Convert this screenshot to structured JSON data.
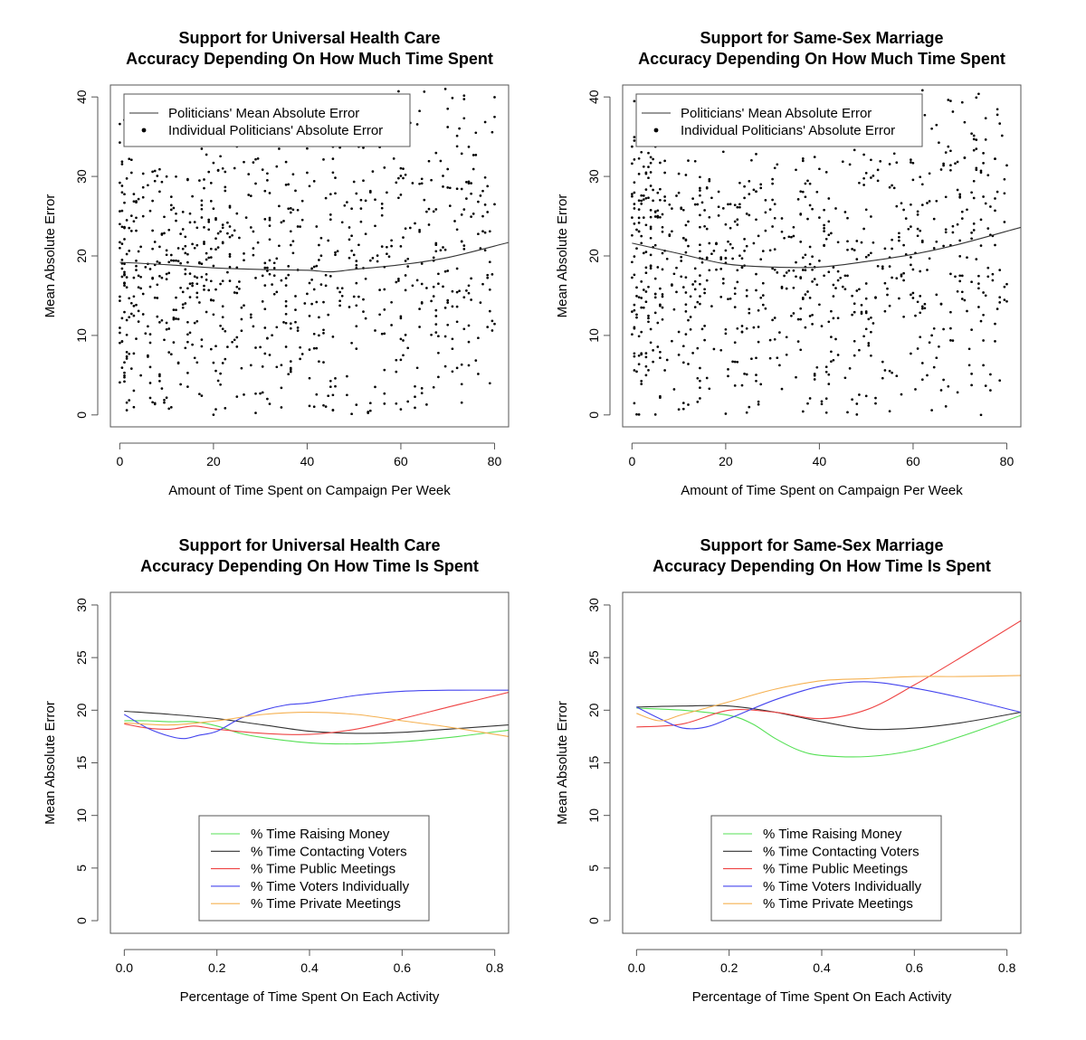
{
  "chart_data": [
    {
      "type": "scatter",
      "title_lines": [
        "Support for Universal Health Care",
        "Accuracy Depending On How Much Time Spent"
      ],
      "xlabel": "Amount of Time Spent on Campaign Per Week",
      "ylabel": "Mean Absolute Error",
      "xlim": [
        -2,
        83
      ],
      "ylim": [
        -1.5,
        41.5
      ],
      "xticks": [
        0,
        20,
        40,
        60,
        80
      ],
      "xtick_labels": [
        "0",
        "20",
        "40",
        "60",
        "80"
      ],
      "yticks": [
        0,
        10,
        20,
        30,
        40
      ],
      "ytick_labels": [
        "0",
        "10",
        "20",
        "30",
        "40"
      ],
      "legend": {
        "placement": "top-left",
        "entries": [
          "Politicians' Mean Absolute Error",
          "Individual Politicians' Absolute Error"
        ]
      },
      "mean_curve": {
        "name": "Politicians' Mean Absolute Error",
        "color": "#333333",
        "x": [
          0,
          10,
          20,
          30,
          40,
          45,
          50,
          60,
          70,
          83
        ],
        "y": [
          19.2,
          18.9,
          18.5,
          18.3,
          18.2,
          18.0,
          18.3,
          18.9,
          19.8,
          21.7
        ]
      },
      "scatter_seed": 11,
      "n_points": 900
    },
    {
      "type": "scatter",
      "title_lines": [
        "Support for Same-Sex Marriage",
        "Accuracy Depending On How Much Time Spent"
      ],
      "xlabel": "Amount of Time Spent on Campaign Per Week",
      "ylabel": "Mean Absolute Error",
      "xlim": [
        -2,
        83
      ],
      "ylim": [
        -1.5,
        41.5
      ],
      "xticks": [
        0,
        20,
        40,
        60,
        80
      ],
      "xtick_labels": [
        "0",
        "20",
        "40",
        "60",
        "80"
      ],
      "yticks": [
        0,
        10,
        20,
        30,
        40
      ],
      "ytick_labels": [
        "0",
        "10",
        "20",
        "30",
        "40"
      ],
      "legend": {
        "placement": "top-left",
        "entries": [
          "Politicians' Mean Absolute Error",
          "Individual Politicians' Absolute Error"
        ]
      },
      "mean_curve": {
        "name": "Politicians' Mean Absolute Error",
        "color": "#333333",
        "x": [
          0,
          10,
          20,
          30,
          40,
          50,
          60,
          70,
          83
        ],
        "y": [
          21.6,
          20.3,
          19.0,
          18.6,
          18.6,
          19.3,
          20.2,
          21.5,
          23.6
        ]
      },
      "scatter_seed": 29,
      "n_points": 900
    },
    {
      "type": "line",
      "title_lines": [
        "Support for Universal Health Care",
        "Accuracy Depending On How Time Is Spent"
      ],
      "xlabel": "Percentage of Time Spent On Each Activity",
      "ylabel": "Mean Absolute Error",
      "xlim": [
        -0.03,
        0.83
      ],
      "ylim": [
        -1.2,
        31.2
      ],
      "xticks": [
        0,
        0.2,
        0.4,
        0.6,
        0.8
      ],
      "xtick_labels": [
        "0.0",
        "0.2",
        "0.4",
        "0.6",
        "0.8"
      ],
      "yticks": [
        0,
        5,
        10,
        15,
        20,
        25,
        30
      ],
      "ytick_labels": [
        "0",
        "5",
        "10",
        "15",
        "20",
        "25",
        "30"
      ],
      "legend": {
        "placement": "bottom-center",
        "entries": [
          "% Time Raising Money",
          "% Time Contacting Voters",
          "% Time Public Meetings",
          "% Time Voters Individually",
          "% Time Private Meetings"
        ]
      },
      "series": [
        {
          "name": "% Time Raising Money",
          "color": "#55e055",
          "x": [
            0,
            0.05,
            0.1,
            0.15,
            0.2,
            0.25,
            0.3,
            0.4,
            0.5,
            0.6,
            0.7,
            0.83
          ],
          "y": [
            19.0,
            19.0,
            18.9,
            18.9,
            18.5,
            17.8,
            17.4,
            16.9,
            16.8,
            17.0,
            17.4,
            18.1
          ]
        },
        {
          "name": "% Time Contacting Voters",
          "color": "#333333",
          "x": [
            0,
            0.1,
            0.2,
            0.3,
            0.4,
            0.5,
            0.6,
            0.7,
            0.83
          ],
          "y": [
            19.9,
            19.6,
            19.2,
            18.6,
            18.0,
            17.8,
            17.9,
            18.2,
            18.6
          ]
        },
        {
          "name": "% Time Public Meetings",
          "color": "#ee4444",
          "x": [
            0,
            0.05,
            0.1,
            0.15,
            0.2,
            0.3,
            0.4,
            0.5,
            0.6,
            0.7,
            0.83
          ],
          "y": [
            18.7,
            18.3,
            18.2,
            18.5,
            18.2,
            17.8,
            17.7,
            18.2,
            19.2,
            20.3,
            21.7
          ]
        },
        {
          "name": "% Time Voters Individually",
          "color": "#4444ee",
          "x": [
            0,
            0.05,
            0.1,
            0.13,
            0.16,
            0.2,
            0.25,
            0.3,
            0.35,
            0.4,
            0.5,
            0.6,
            0.7,
            0.83
          ],
          "y": [
            19.6,
            18.3,
            17.5,
            17.3,
            17.6,
            18.0,
            19.2,
            20.0,
            20.5,
            20.7,
            21.4,
            21.8,
            21.9,
            21.9
          ]
        },
        {
          "name": "% Time Private Meetings",
          "color": "#f5b050",
          "x": [
            0,
            0.1,
            0.2,
            0.3,
            0.4,
            0.5,
            0.6,
            0.7,
            0.83
          ],
          "y": [
            18.8,
            18.6,
            19.0,
            19.6,
            19.8,
            19.6,
            19.0,
            18.4,
            17.5
          ]
        }
      ]
    },
    {
      "type": "line",
      "title_lines": [
        "Support for Same-Sex Marriage",
        "Accuracy Depending On How Time Is Spent"
      ],
      "xlabel": "Percentage of Time Spent On Each Activity",
      "ylabel": "Mean Absolute Error",
      "xlim": [
        -0.03,
        0.83
      ],
      "ylim": [
        -1.2,
        31.2
      ],
      "xticks": [
        0,
        0.2,
        0.4,
        0.6,
        0.8
      ],
      "xtick_labels": [
        "0.0",
        "0.2",
        "0.4",
        "0.6",
        "0.8"
      ],
      "yticks": [
        0,
        5,
        10,
        15,
        20,
        25,
        30
      ],
      "ytick_labels": [
        "0",
        "5",
        "10",
        "15",
        "20",
        "25",
        "30"
      ],
      "legend": {
        "placement": "bottom-center",
        "entries": [
          "% Time Raising Money",
          "% Time Contacting Voters",
          "% Time Public Meetings",
          "% Time Voters Individually",
          "% Time Private Meetings"
        ]
      },
      "series": [
        {
          "name": "% Time Raising Money",
          "color": "#55e055",
          "x": [
            0,
            0.1,
            0.2,
            0.25,
            0.3,
            0.35,
            0.4,
            0.5,
            0.6,
            0.7,
            0.83
          ],
          "y": [
            20.2,
            20.0,
            19.5,
            18.7,
            17.3,
            16.2,
            15.7,
            15.6,
            16.2,
            17.5,
            19.5
          ]
        },
        {
          "name": "% Time Contacting Voters",
          "color": "#333333",
          "x": [
            0,
            0.1,
            0.2,
            0.3,
            0.4,
            0.5,
            0.6,
            0.7,
            0.83
          ],
          "y": [
            20.3,
            20.4,
            20.4,
            19.8,
            18.9,
            18.2,
            18.3,
            18.8,
            19.8
          ]
        },
        {
          "name": "% Time Public Meetings",
          "color": "#ee4444",
          "x": [
            0,
            0.1,
            0.2,
            0.3,
            0.4,
            0.5,
            0.6,
            0.7,
            0.83
          ],
          "y": [
            18.4,
            18.7,
            20.0,
            19.8,
            19.2,
            20.1,
            22.4,
            25.0,
            28.5
          ]
        },
        {
          "name": "% Time Voters Individually",
          "color": "#4444ee",
          "x": [
            0,
            0.05,
            0.1,
            0.15,
            0.2,
            0.3,
            0.4,
            0.5,
            0.6,
            0.7,
            0.83
          ],
          "y": [
            20.3,
            19.2,
            18.3,
            18.4,
            19.2,
            21.0,
            22.3,
            22.7,
            22.1,
            21.2,
            19.8
          ]
        },
        {
          "name": "% Time Private Meetings",
          "color": "#f5b050",
          "x": [
            0,
            0.05,
            0.1,
            0.2,
            0.3,
            0.4,
            0.5,
            0.6,
            0.7,
            0.83
          ],
          "y": [
            19.7,
            19.0,
            19.6,
            20.8,
            22.0,
            22.8,
            23.0,
            23.2,
            23.2,
            23.3
          ]
        }
      ]
    }
  ]
}
